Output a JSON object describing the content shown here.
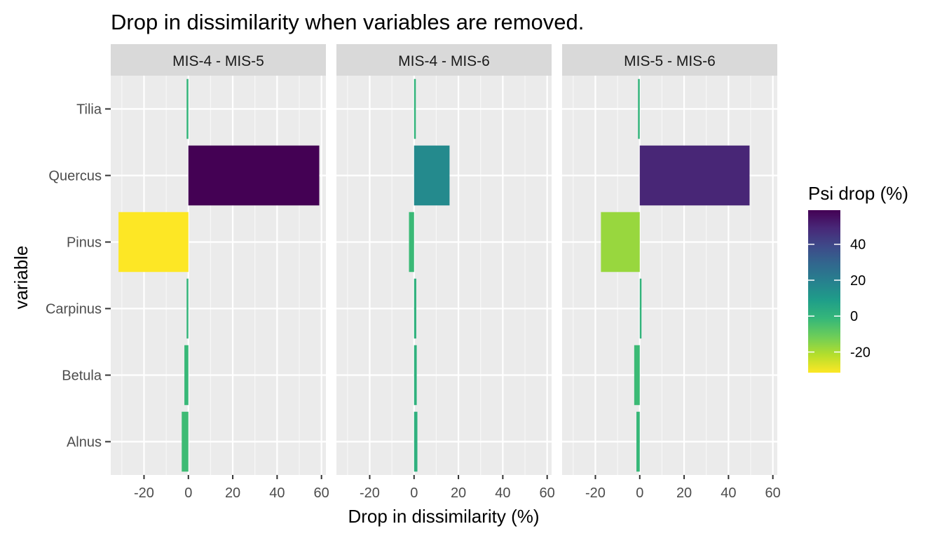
{
  "chart_data": {
    "type": "bar",
    "orientation": "horizontal",
    "title": "Drop in dissimilarity when variables are removed.",
    "xlabel": "Drop in dissimilarity (%)",
    "ylabel": "variable",
    "xlim": [
      -35,
      62
    ],
    "x_ticks": [
      -20,
      0,
      20,
      40,
      60
    ],
    "x_tick_labels": [
      "-20",
      "0",
      "20",
      "40",
      "60"
    ],
    "categories": [
      "Alnus",
      "Betula",
      "Carpinus",
      "Pinus",
      "Quercus",
      "Tilia"
    ],
    "grid": true,
    "facets": [
      {
        "name": "MIS-4 - MIS-5",
        "values": [
          -3.0,
          -1.8,
          -0.6,
          -31.5,
          59.0,
          -0.4
        ]
      },
      {
        "name": "MIS-4 - MIS-6",
        "values": [
          1.5,
          1.2,
          1.0,
          -2.3,
          16.0,
          0.0
        ]
      },
      {
        "name": "MIS-5 - MIS-6",
        "values": [
          -1.5,
          -2.5,
          0.2,
          -17.5,
          49.5,
          -0.3
        ]
      }
    ],
    "legend": {
      "title": "Psi drop (%)",
      "position": "right",
      "type": "colorbar",
      "palette": "viridis",
      "reversed": true,
      "range": [
        -31.5,
        59.0
      ],
      "ticks": [
        -20,
        0,
        20,
        40
      ],
      "tick_labels": [
        "-20",
        "0",
        "20",
        "40"
      ]
    }
  }
}
